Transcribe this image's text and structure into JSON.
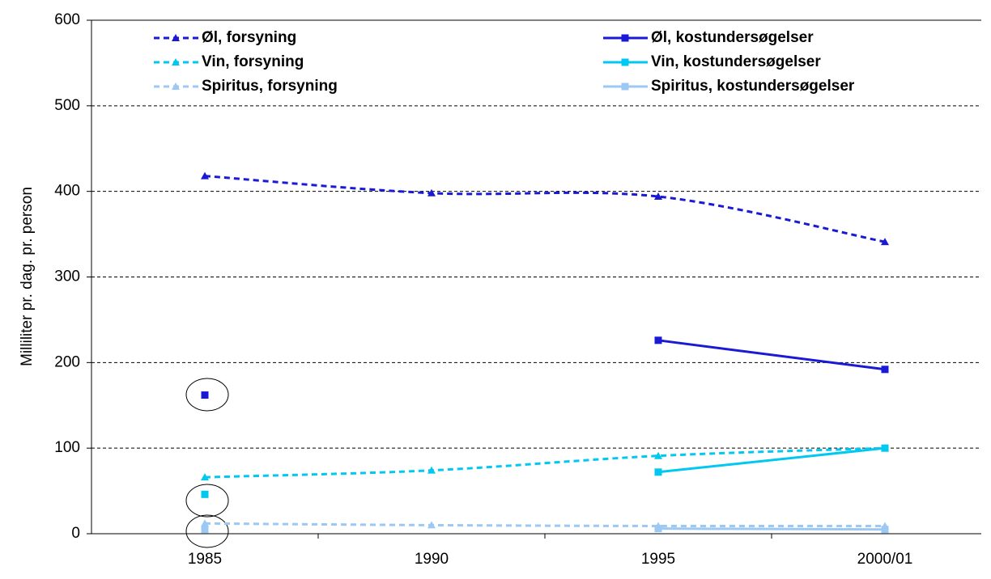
{
  "chart_data": {
    "type": "line",
    "ylabel": "Milliliter pr. dag. pr. person",
    "categories": [
      "1985",
      "1990",
      "1995",
      "2000/01"
    ],
    "ylim": [
      0,
      600
    ],
    "yticks": [
      0,
      100,
      200,
      300,
      400,
      500,
      600
    ],
    "grid": true,
    "series": [
      {
        "name": "Øl, forsyning",
        "color": "#1a1ad6",
        "marker": "triangle",
        "dashed": true,
        "smooth": true,
        "values": [
          418,
          398,
          394,
          341
        ]
      },
      {
        "name": "Vin, forsyning",
        "color": "#00c8f0",
        "marker": "triangle",
        "dashed": true,
        "smooth": true,
        "values": [
          66,
          74,
          91,
          100
        ]
      },
      {
        "name": "Spiritus, forsyning",
        "color": "#9cc8f4",
        "marker": "triangle",
        "dashed": true,
        "smooth": true,
        "values": [
          12,
          10,
          9,
          9
        ]
      },
      {
        "name": "Øl, kostundersøgelser",
        "color": "#1a1ad6",
        "marker": "square",
        "dashed": false,
        "smooth": false,
        "values": [
          162,
          null,
          226,
          192
        ]
      },
      {
        "name": "Vin, kostundersøgelser",
        "color": "#00c8f0",
        "marker": "square",
        "dashed": false,
        "smooth": false,
        "values": [
          46,
          null,
          72,
          100
        ]
      },
      {
        "name": "Spiritus, kostundersøgelser",
        "color": "#9cc8f4",
        "marker": "square",
        "dashed": false,
        "smooth": false,
        "values": [
          5,
          null,
          6,
          5
        ]
      }
    ]
  }
}
